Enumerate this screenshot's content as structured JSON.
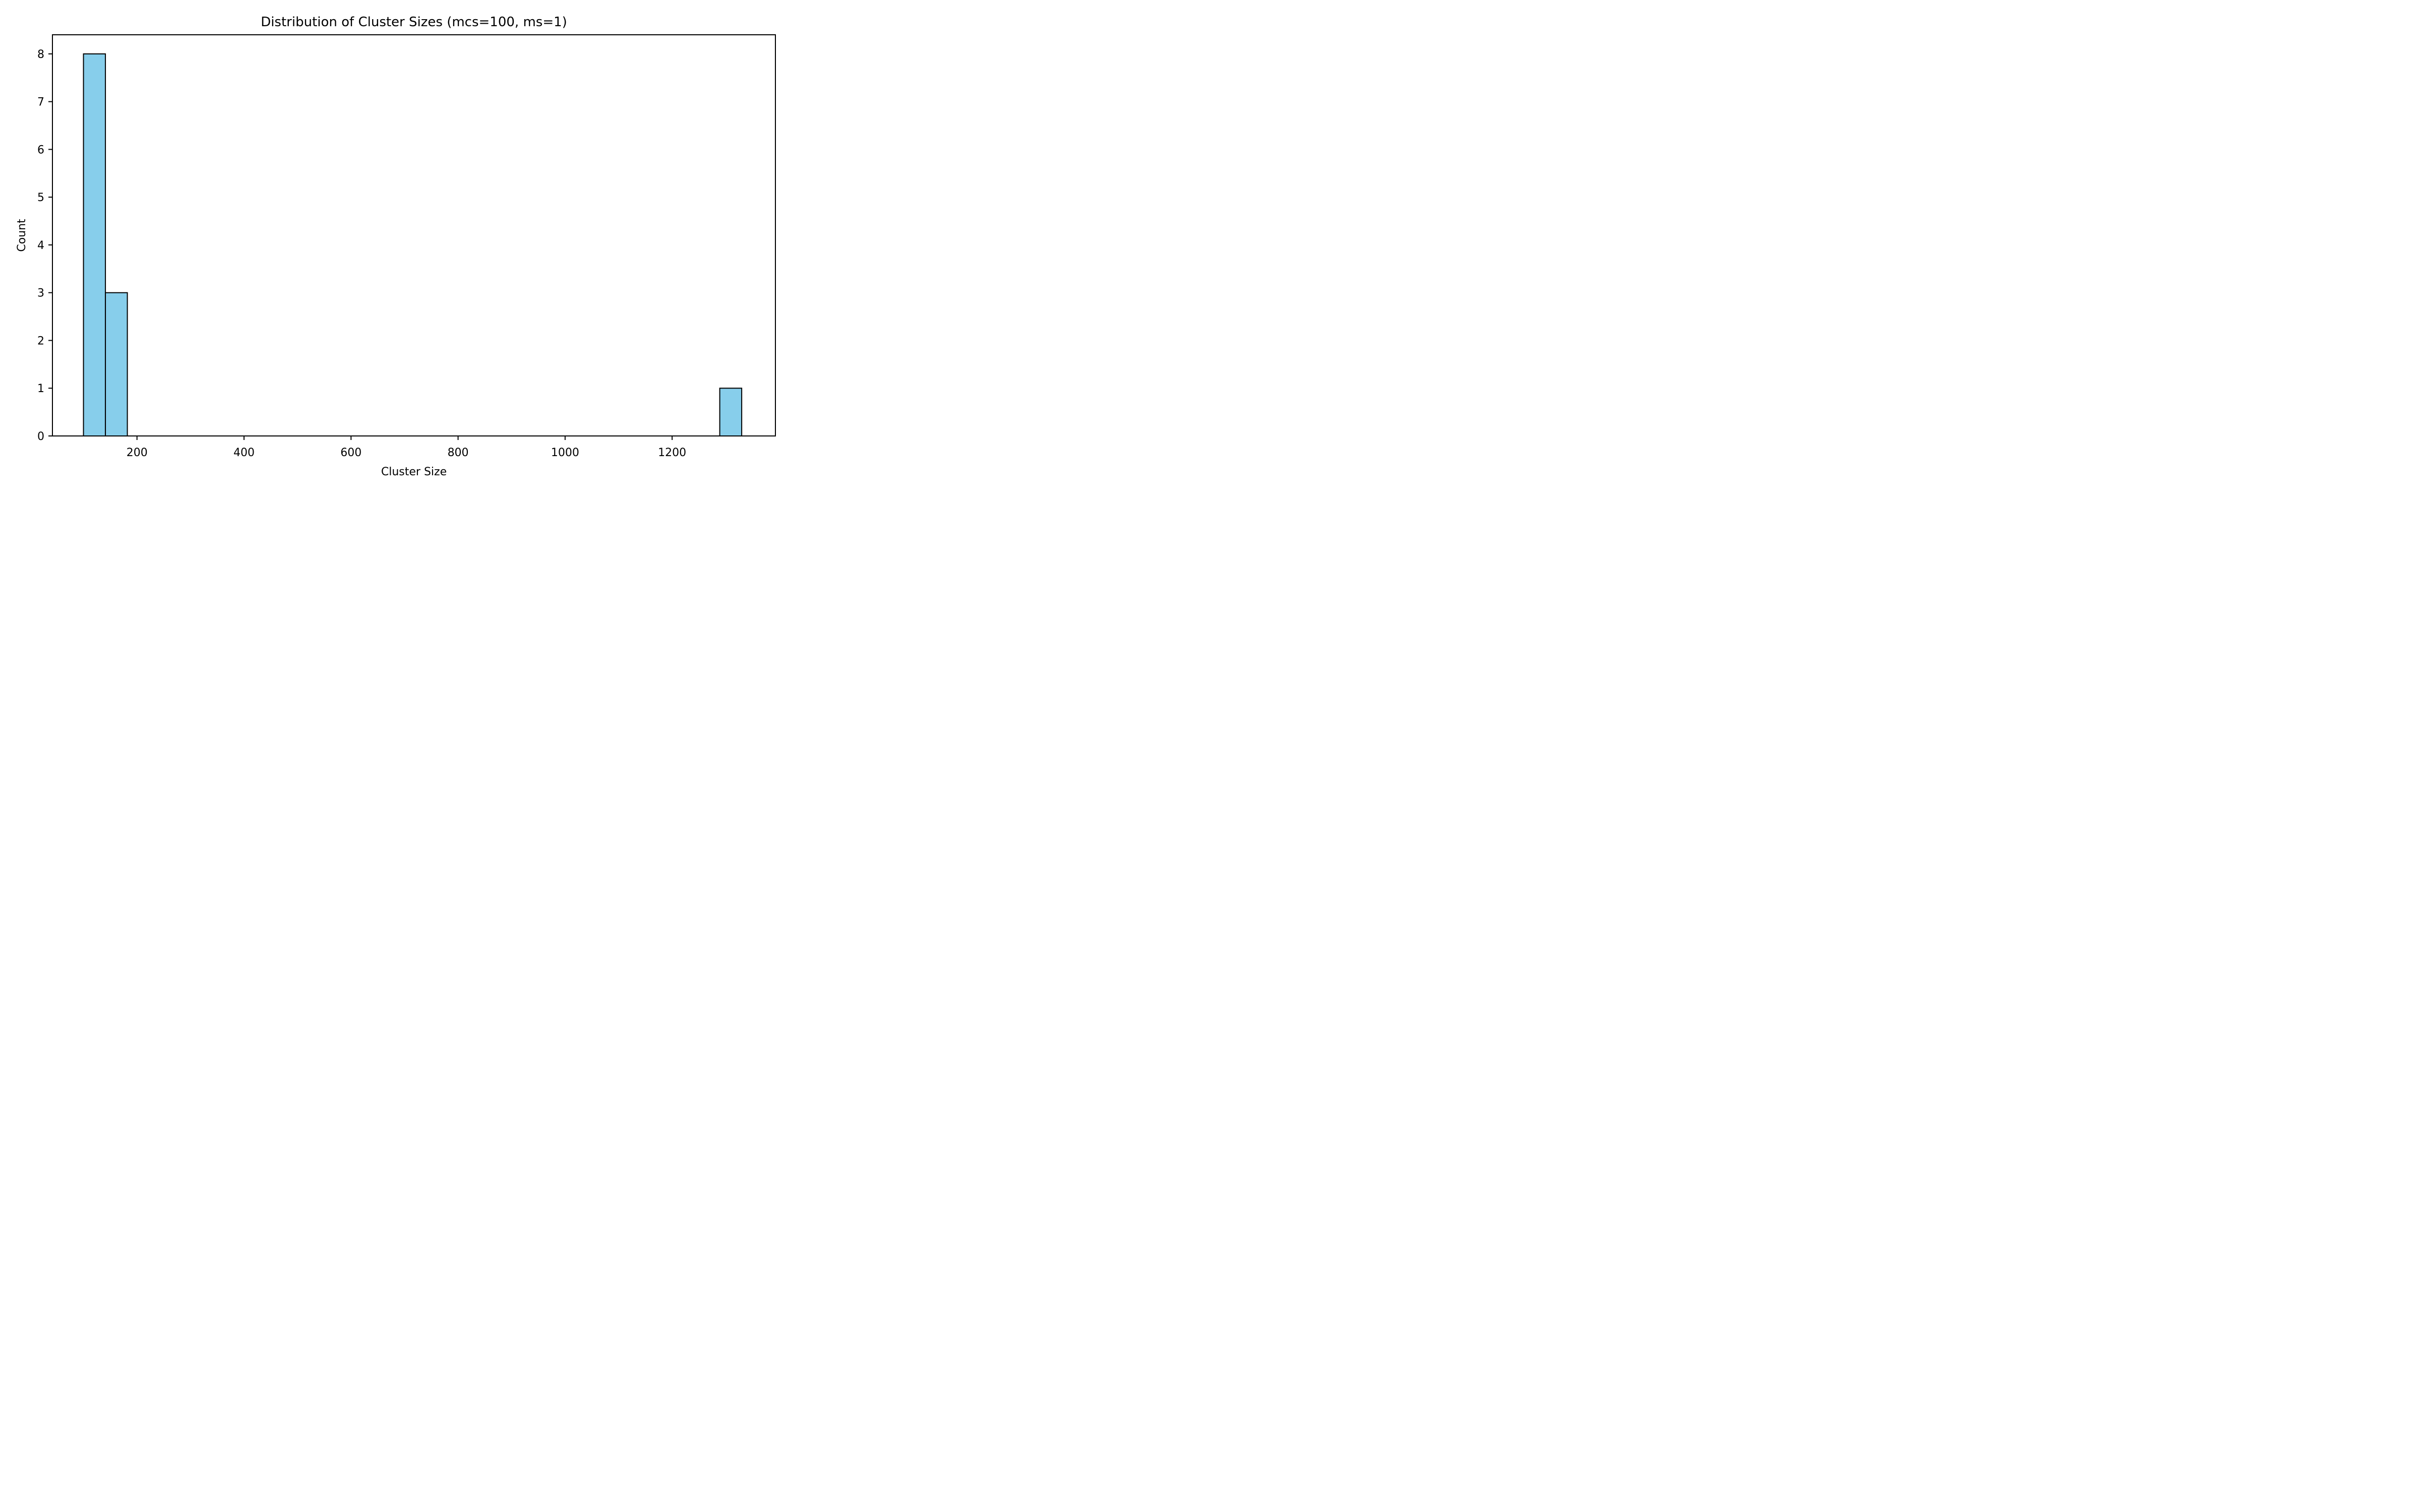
{
  "chart_data": {
    "type": "bar",
    "subtype": "histogram",
    "title": "Distribution of Cluster Sizes (mcs=100, ms=1)",
    "xlabel": "Cluster Size",
    "ylabel": "Count",
    "xlim": [
      42,
      1393
    ],
    "ylim": [
      0,
      8.4
    ],
    "xticks": [
      200,
      400,
      600,
      800,
      1000,
      1200
    ],
    "yticks": [
      0,
      1,
      2,
      3,
      4,
      5,
      6,
      7,
      8
    ],
    "bin_edges": [
      100,
      141,
      182,
      223,
      264,
      305,
      346,
      387,
      428,
      469,
      510,
      551,
      592,
      633,
      674,
      715,
      756,
      797,
      838,
      879,
      920,
      961,
      1002,
      1043,
      1084,
      1125,
      1166,
      1207,
      1248,
      1289,
      1330
    ],
    "counts": [
      8,
      3,
      0,
      0,
      0,
      0,
      0,
      0,
      0,
      0,
      0,
      0,
      0,
      0,
      0,
      0,
      0,
      0,
      0,
      0,
      0,
      0,
      0,
      0,
      0,
      0,
      0,
      0,
      0,
      1
    ],
    "bar_color": "#87ceeb",
    "edge_color": "#000000",
    "grid": false,
    "legend": "none"
  }
}
